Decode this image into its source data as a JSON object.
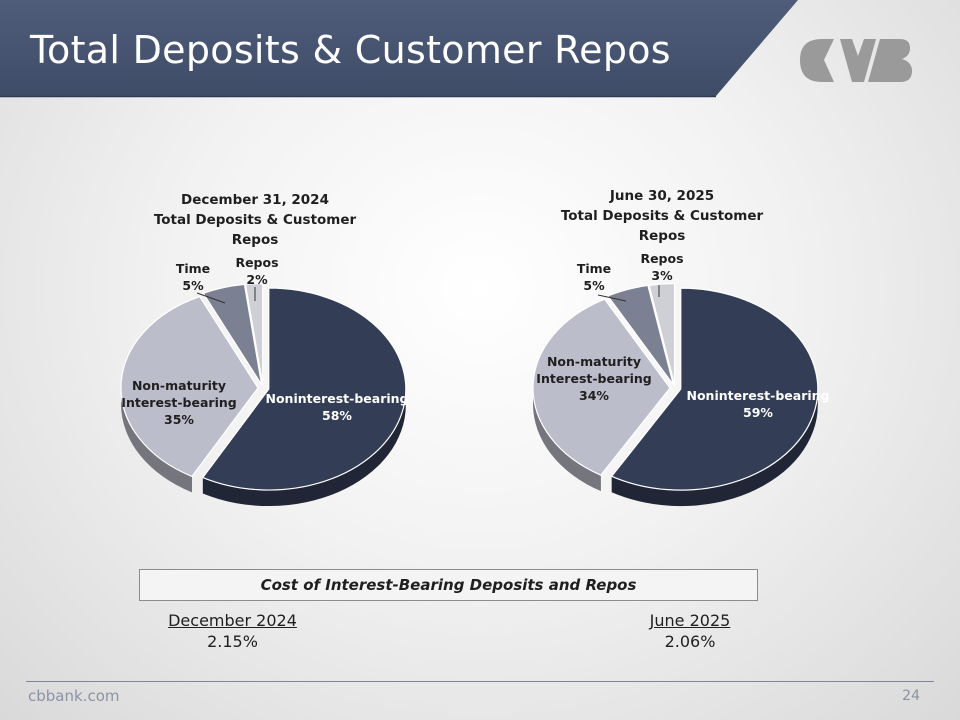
{
  "slide": {
    "title": "Total Deposits & Customer Repos",
    "footer_site": "cbbank.com",
    "page_number": "24"
  },
  "logo": {
    "name": "cvb-logo-icon",
    "color": "#9a9a9a"
  },
  "colors": {
    "header": "#45536f",
    "noninterest": "#333d56",
    "nonmaturity": "#bcbdca",
    "time": "#7b8092",
    "repos": "#cfd0d6"
  },
  "chart_data": [
    {
      "type": "pie",
      "title_line1": "December 31, 2024",
      "title_line2": "Total Deposits & Customer Repos",
      "slices": [
        {
          "name": "Noninterest-bearing",
          "value": 58,
          "label": "58%"
        },
        {
          "name": "Non-maturity Interest-bearing",
          "name_line1": "Non-maturity",
          "name_line2": "Interest-bearing",
          "value": 35,
          "label": "35%"
        },
        {
          "name": "Time",
          "value": 5,
          "label": "5%"
        },
        {
          "name": "Repos",
          "value": 2,
          "label": "2%"
        }
      ]
    },
    {
      "type": "pie",
      "title_line1": "June 30, 2025",
      "title_line2": "Total Deposits & Customer Repos",
      "slices": [
        {
          "name": "Noninterest-bearing",
          "value": 59,
          "label": "59%"
        },
        {
          "name": "Non-maturity Interest-bearing",
          "name_line1": "Non-maturity",
          "name_line2": "Interest-bearing",
          "value": 34,
          "label": "34%"
        },
        {
          "name": "Time",
          "value": 5,
          "label": "5%"
        },
        {
          "name": "Repos",
          "value": 3,
          "label": "3%"
        }
      ]
    }
  ],
  "cost": {
    "title": "Cost of Interest-Bearing Deposits and Repos",
    "items": [
      {
        "label": "December 2024",
        "value": "2.15%"
      },
      {
        "label": "June 2025",
        "value": "2.06%"
      }
    ]
  }
}
